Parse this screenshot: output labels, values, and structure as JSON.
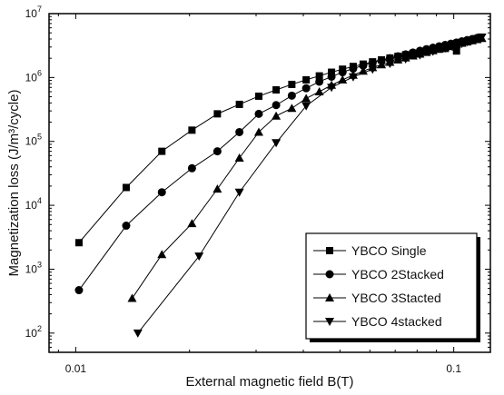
{
  "chart_data": {
    "type": "scatter",
    "title": "",
    "xlabel": "External magnetic field B(T)",
    "ylabel": "Magnetization loss (J/m³/cycle)",
    "xscale": "log",
    "yscale": "log",
    "xlim": [
      0.0085,
      0.125
    ],
    "ylim": [
      50,
      10000000
    ],
    "xticks": [
      {
        "value": 0.01,
        "label": "0.01"
      },
      {
        "value": 0.1,
        "label": "0.1"
      }
    ],
    "yticks": [
      {
        "value": 100,
        "mantissa": "10",
        "exp": "2"
      },
      {
        "value": 1000,
        "mantissa": "10",
        "exp": "3"
      },
      {
        "value": 10000,
        "mantissa": "10",
        "exp": "4"
      },
      {
        "value": 100000,
        "mantissa": "10",
        "exp": "5"
      },
      {
        "value": 1000000,
        "mantissa": "10",
        "exp": "6"
      },
      {
        "value": 10000000,
        "mantissa": "10",
        "exp": "7"
      }
    ],
    "grid": false,
    "legend_position": "bottom-right",
    "series": [
      {
        "name": "YBCO Single",
        "marker": "square",
        "color": "#000000",
        "x": [
          0.0102,
          0.0136,
          0.0169,
          0.0203,
          0.0237,
          0.0271,
          0.0305,
          0.0339,
          0.0373,
          0.0407,
          0.0441,
          0.0475,
          0.0508,
          0.0542,
          0.0576,
          0.061,
          0.0644,
          0.0678,
          0.0712,
          0.0746,
          0.078,
          0.0814,
          0.0847,
          0.0881,
          0.0915,
          0.0949,
          0.1017
        ],
        "y": [
          2600,
          19000,
          70000,
          150000,
          270000,
          380000,
          510000,
          640000,
          780000,
          920000,
          1060000,
          1210000,
          1350000,
          1490000,
          1620000,
          1760000,
          1890000,
          2020000,
          2150000,
          2270000,
          2380000,
          2490000,
          2590000,
          2680000,
          2770000,
          2850000,
          2600000
        ]
      },
      {
        "name": "YBCO 2Stacked",
        "marker": "circle",
        "color": "#000000",
        "x": [
          0.0102,
          0.0136,
          0.0169,
          0.0203,
          0.0237,
          0.0271,
          0.0305,
          0.0339,
          0.0373,
          0.0407,
          0.0441,
          0.0475,
          0.0508,
          0.0542,
          0.0576,
          0.061,
          0.0644,
          0.0678,
          0.0712,
          0.0746,
          0.078,
          0.0814,
          0.0847,
          0.0881,
          0.0915,
          0.0949,
          0.0983,
          0.1017,
          0.1051,
          0.1085,
          0.1119,
          0.1153
        ],
        "y": [
          470,
          4800,
          16000,
          38000,
          70000,
          140000,
          270000,
          370000,
          520000,
          680000,
          860000,
          1030000,
          1210000,
          1380000,
          1540000,
          1700000,
          1850000,
          2000000,
          2150000,
          2300000,
          2460000,
          2620000,
          2780000,
          2930000,
          3080000,
          3230000,
          3380000,
          3530000,
          3690000,
          3850000,
          4000000,
          4160000
        ]
      },
      {
        "name": "YBCO 3Stacted",
        "marker": "triangle-up",
        "color": "#000000",
        "x": [
          0.0141,
          0.0169,
          0.0203,
          0.0237,
          0.0271,
          0.0305,
          0.0339,
          0.0373,
          0.0407,
          0.0441,
          0.0475,
          0.0508,
          0.0542,
          0.0576,
          0.061,
          0.0644,
          0.0678,
          0.0712,
          0.0746,
          0.078,
          0.0814,
          0.0847,
          0.0881,
          0.0915,
          0.0949,
          0.0983,
          0.1017,
          0.1051,
          0.1085,
          0.1119,
          0.1153,
          0.1187
        ],
        "y": [
          350,
          1700,
          5200,
          18000,
          55000,
          140000,
          250000,
          330000,
          470000,
          600000,
          760000,
          920000,
          1090000,
          1260000,
          1430000,
          1590000,
          1740000,
          1890000,
          2040000,
          2180000,
          2330000,
          2480000,
          2640000,
          2800000,
          2960000,
          3120000,
          3280000,
          3450000,
          3610000,
          3780000,
          3940000,
          4100000
        ]
      },
      {
        "name": "YBCO 4stacked",
        "marker": "triangle-down",
        "color": "#000000",
        "x": [
          0.0146,
          0.0212,
          0.0271,
          0.0339,
          0.0407,
          0.0475,
          0.0542,
          0.061,
          0.0678,
          0.0746,
          0.0814,
          0.0881,
          0.0949,
          0.1017,
          0.1051,
          0.1085,
          0.1119,
          0.1153,
          0.1187
        ],
        "y": [
          100,
          1600,
          16000,
          95000,
          360000,
          700000,
          1020000,
          1350000,
          1650000,
          1950000,
          2250000,
          2560000,
          2870000,
          3200000,
          3400000,
          3600000,
          3820000,
          4050000,
          4280000
        ]
      }
    ]
  }
}
